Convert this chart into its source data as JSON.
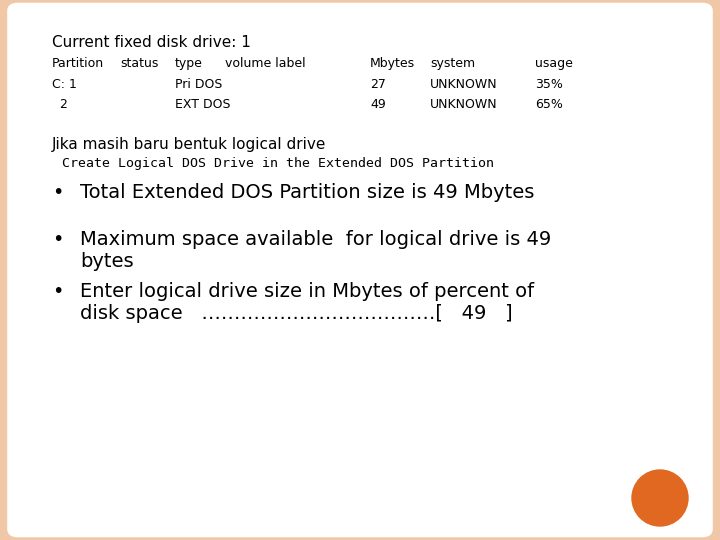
{
  "bg_color": "#f0c8a8",
  "panel_color": "#ffffff",
  "title": "Current fixed disk drive: 1",
  "header_cols": [
    "Partition",
    "status",
    "type",
    "volume label",
    "Mbytes",
    "system",
    "usage"
  ],
  "row1_cols": [
    "C: 1",
    "",
    "Pri DOS",
    "",
    "27",
    "UNKNOWN",
    "35%"
  ],
  "row2_cols": [
    "  2",
    "",
    "EXT DOS",
    "",
    "49",
    "UNKNOWN",
    "65%"
  ],
  "jika_text": "Jika masih baru bentuk logical drive",
  "create_text": "Create Logical DOS Drive in the Extended DOS Partition",
  "bullet1": "Total Extended DOS Partition size is 49 Mbytes",
  "bullet2a": "Maximum space available  for logical drive is 49",
  "bullet2b": "bytes",
  "bullet3a": "Enter logical drive size in Mbytes of percent of",
  "bullet3b": "disk space   ………………………………[   49   ]",
  "circle_color": "#e06820",
  "title_fontsize": 11,
  "header_fontsize": 9,
  "body_fontsize": 14
}
